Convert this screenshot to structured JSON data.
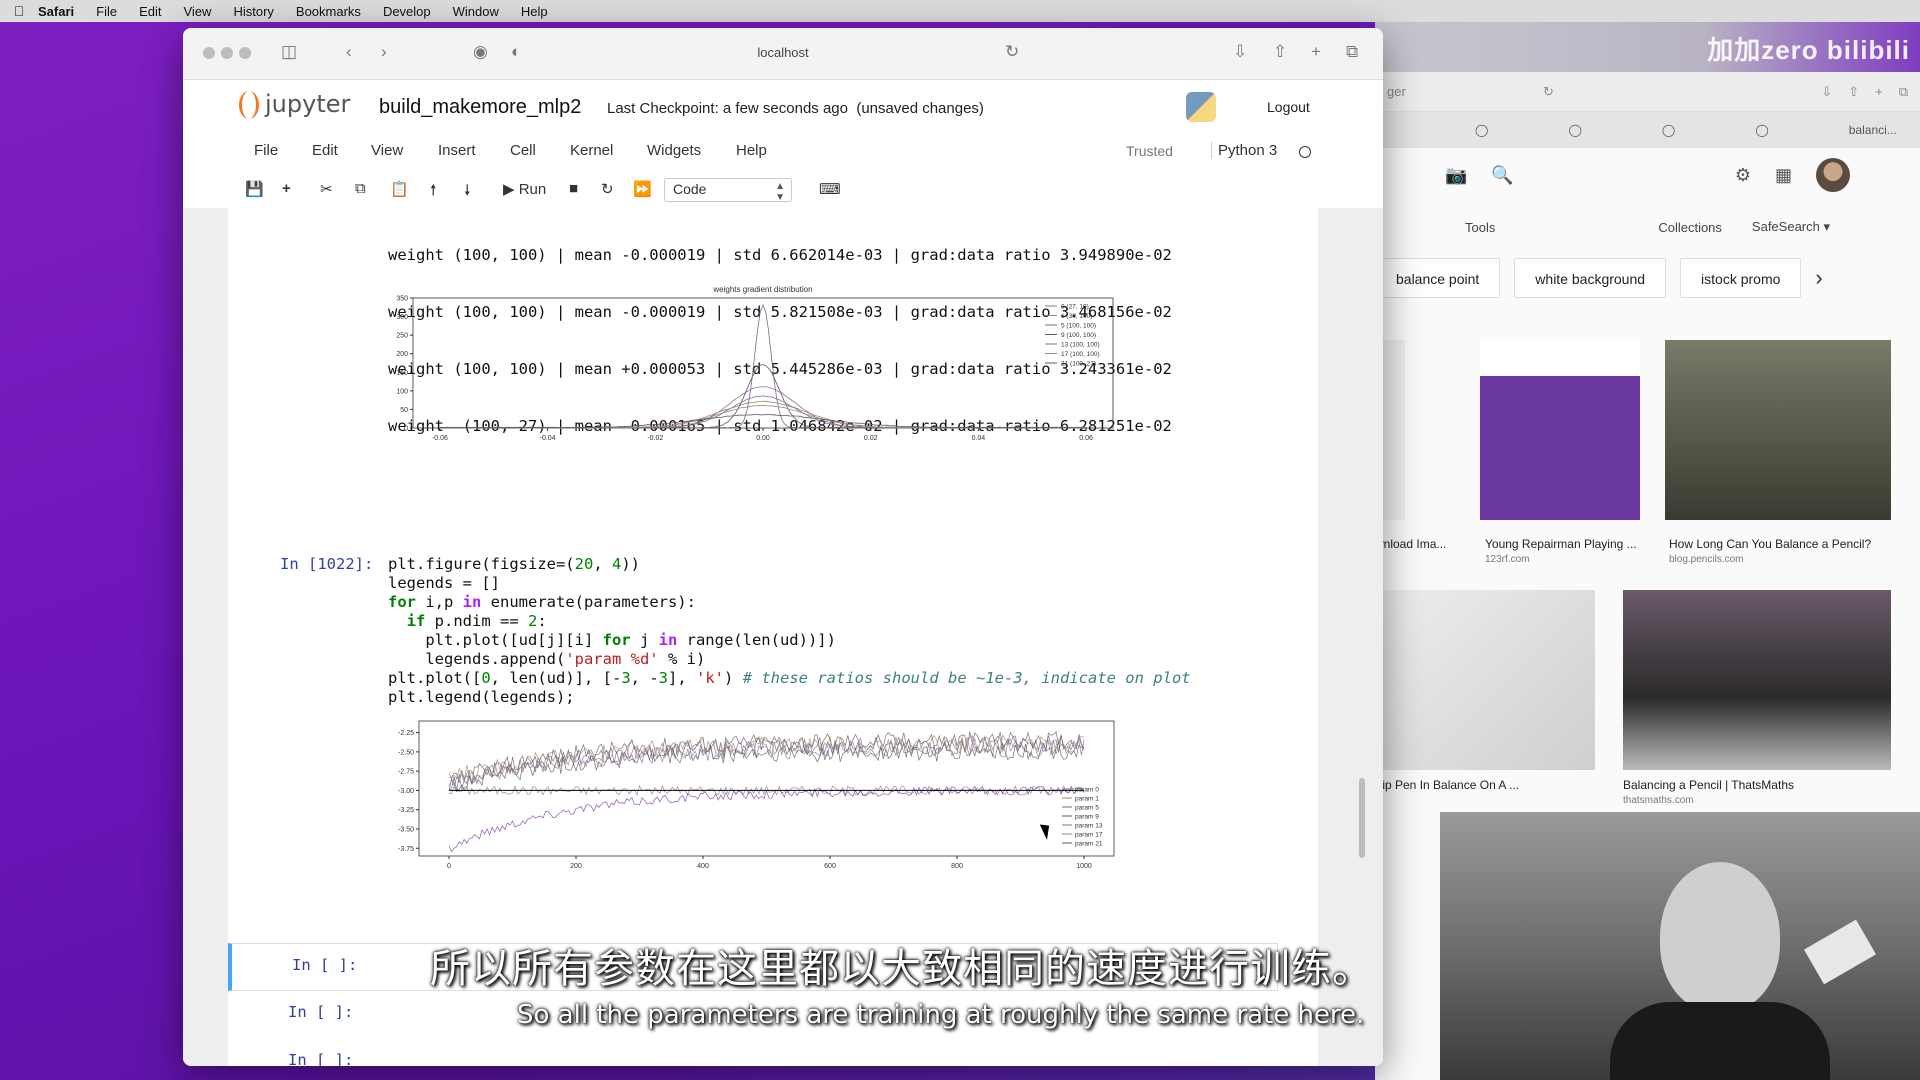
{
  "menubar": {
    "apple": "",
    "items": [
      "Safari",
      "File",
      "Edit",
      "View",
      "History",
      "Bookmarks",
      "Develop",
      "Window",
      "Help"
    ]
  },
  "browser": {
    "url": "localhost"
  },
  "jupyter": {
    "logo_text": "jupyter",
    "notebook_name": "build_makemore_mlp2",
    "checkpoint": "Last Checkpoint: a few seconds ago",
    "unsaved": "(unsaved changes)",
    "logout": "Logout",
    "menu": [
      "File",
      "Edit",
      "View",
      "Insert",
      "Cell",
      "Kernel",
      "Widgets",
      "Help"
    ],
    "trusted": "Trusted",
    "kernel": "Python 3",
    "toolbar": {
      "run_label": "Run",
      "cell_type": "Code"
    }
  },
  "output_lines": [
    "weight (100, 100) | mean -0.000019 | std 6.662014e-03 | grad:data ratio 3.949890e-02",
    "weight (100, 100) | mean -0.000019 | std 5.821508e-03 | grad:data ratio 3.468156e-02",
    "weight (100, 100) | mean +0.000053 | std 5.445286e-03 | grad:data ratio 3.243361e-02",
    "weight  (100, 27) | mean -0.000165 | std 1.046842e-02 | grad:data ratio 6.281251e-02"
  ],
  "cell_1022": {
    "prompt": "In [1022]:"
  },
  "empty_prompts": [
    "In [ ]:",
    "In [ ]:",
    "In [ ]:"
  ],
  "chart_data": [
    {
      "type": "line",
      "title": "weights gradient distribution",
      "xlim": [
        -0.065,
        0.065
      ],
      "ylim": [
        0,
        350
      ],
      "x_ticks": [
        "-0.06",
        "-0.04",
        "-0.02",
        "0.00",
        "0.02",
        "0.04",
        "0.06"
      ],
      "y_ticks": [
        "0",
        "50",
        "100",
        "150",
        "200",
        "250",
        "300",
        "350"
      ],
      "legend_position": "top-right",
      "series": [
        {
          "name": "0 (27, 10)",
          "peak": 110,
          "width": 0.006
        },
        {
          "name": "1 (30, 100)",
          "peak": 70,
          "width": 0.008
        },
        {
          "name": "5 (100, 100)",
          "peak": 330,
          "width": 0.0015
        },
        {
          "name": "9 (100, 100)",
          "peak": 170,
          "width": 0.003
        },
        {
          "name": "13 (100, 100)",
          "peak": 85,
          "width": 0.006
        },
        {
          "name": "17 (100, 100)",
          "peak": 60,
          "width": 0.008
        },
        {
          "name": "21 (100, 27)",
          "peak": 35,
          "width": 0.012
        }
      ]
    },
    {
      "type": "line",
      "xlim": [
        0,
        1000
      ],
      "ylim": [
        -3.85,
        -2.1
      ],
      "x_ticks": [
        "0",
        "200",
        "400",
        "600",
        "800",
        "1000"
      ],
      "y_ticks": [
        "-2.25",
        "-2.50",
        "-2.75",
        "-3.00",
        "-3.25",
        "-3.50",
        "-3.75"
      ],
      "legend_position": "lower-right",
      "reference_line": {
        "x": [
          0,
          1000
        ],
        "y": [
          -3,
          -3
        ],
        "color": "#000000"
      },
      "series": [
        {
          "name": "param 0",
          "start": -3.0,
          "plateau": -3.0,
          "noise": 0.06
        },
        {
          "name": "param 1",
          "start": -3.75,
          "plateau": -3.0,
          "noise": 0.06
        },
        {
          "name": "param 5",
          "start": -2.95,
          "plateau": -2.4,
          "noise": 0.12
        },
        {
          "name": "param 9",
          "start": -2.9,
          "plateau": -2.35,
          "noise": 0.12
        },
        {
          "name": "param 13",
          "start": -2.9,
          "plateau": -2.45,
          "noise": 0.12
        },
        {
          "name": "param 17",
          "start": -2.85,
          "plateau": -2.4,
          "noise": 0.12
        },
        {
          "name": "param 21",
          "start": -2.95,
          "plateau": -2.5,
          "noise": 0.12
        }
      ]
    }
  ],
  "right_window": {
    "watermark": "加加zero bilibili",
    "tab_text": "balanci...",
    "tools": "Tools",
    "collections": "Collections",
    "safesearch": "SafeSearch ▾",
    "chips": [
      "balance point",
      "white background",
      "istock promo"
    ],
    "results": [
      {
        "caption": "wnload Ima...",
        "source": ""
      },
      {
        "caption": "Young Repairman Playing ...",
        "source": "123rf.com"
      },
      {
        "caption": "How Long Can You Balance a Pencil?",
        "source": "blog.pencils.com"
      },
      {
        "caption": "-tip Pen In Balance On A ...",
        "source": ""
      },
      {
        "caption": "Balancing a Pencil | ThatsMaths",
        "source": "thatsmaths.com"
      }
    ]
  },
  "subtitles": {
    "chinese": "所以所有参数在这里都以大致相同的速度进行训练。",
    "english": "So all the parameters are training at roughly the same rate here."
  }
}
